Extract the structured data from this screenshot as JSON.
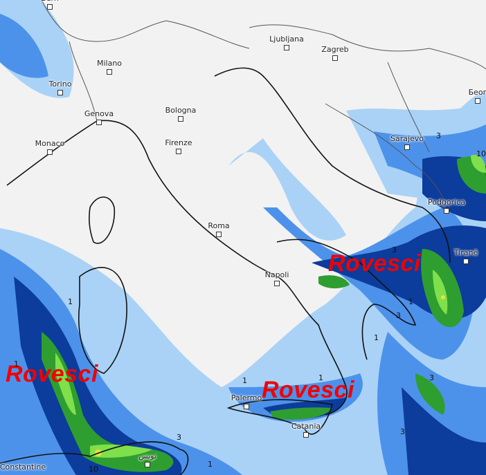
{
  "map": {
    "type": "precipitation forecast map",
    "colors": {
      "land": "#f2f2f2",
      "light_blue": "#a9d2f6",
      "blue": "#4d92ea",
      "mid_blue": "#2068d8",
      "dark_blue": "#0c3c9c",
      "green": "#2f9e30",
      "light_green": "#7fe04c",
      "yellow": "#e8e040",
      "annotation": "#f20000"
    },
    "cities": [
      "Bern",
      "Milano",
      "Torino",
      "Genova",
      "Bologna",
      "Firenze",
      "Monaco",
      "Roma",
      "Napoli",
      "Palermo",
      "Catania",
      "Ljubljana",
      "Zagreb",
      "Sarajevo",
      "Podgorica",
      "Tiranë",
      "Беог",
      "Constantine",
      "تونس"
    ],
    "annotations": [
      "Rovesci",
      "Rovesci",
      "Rovesci"
    ],
    "contour_labels": [
      "1",
      "1",
      "1",
      "1",
      "1",
      "1",
      "1",
      "3",
      "3",
      "3",
      "3",
      "3",
      "3",
      "10",
      "10"
    ]
  }
}
